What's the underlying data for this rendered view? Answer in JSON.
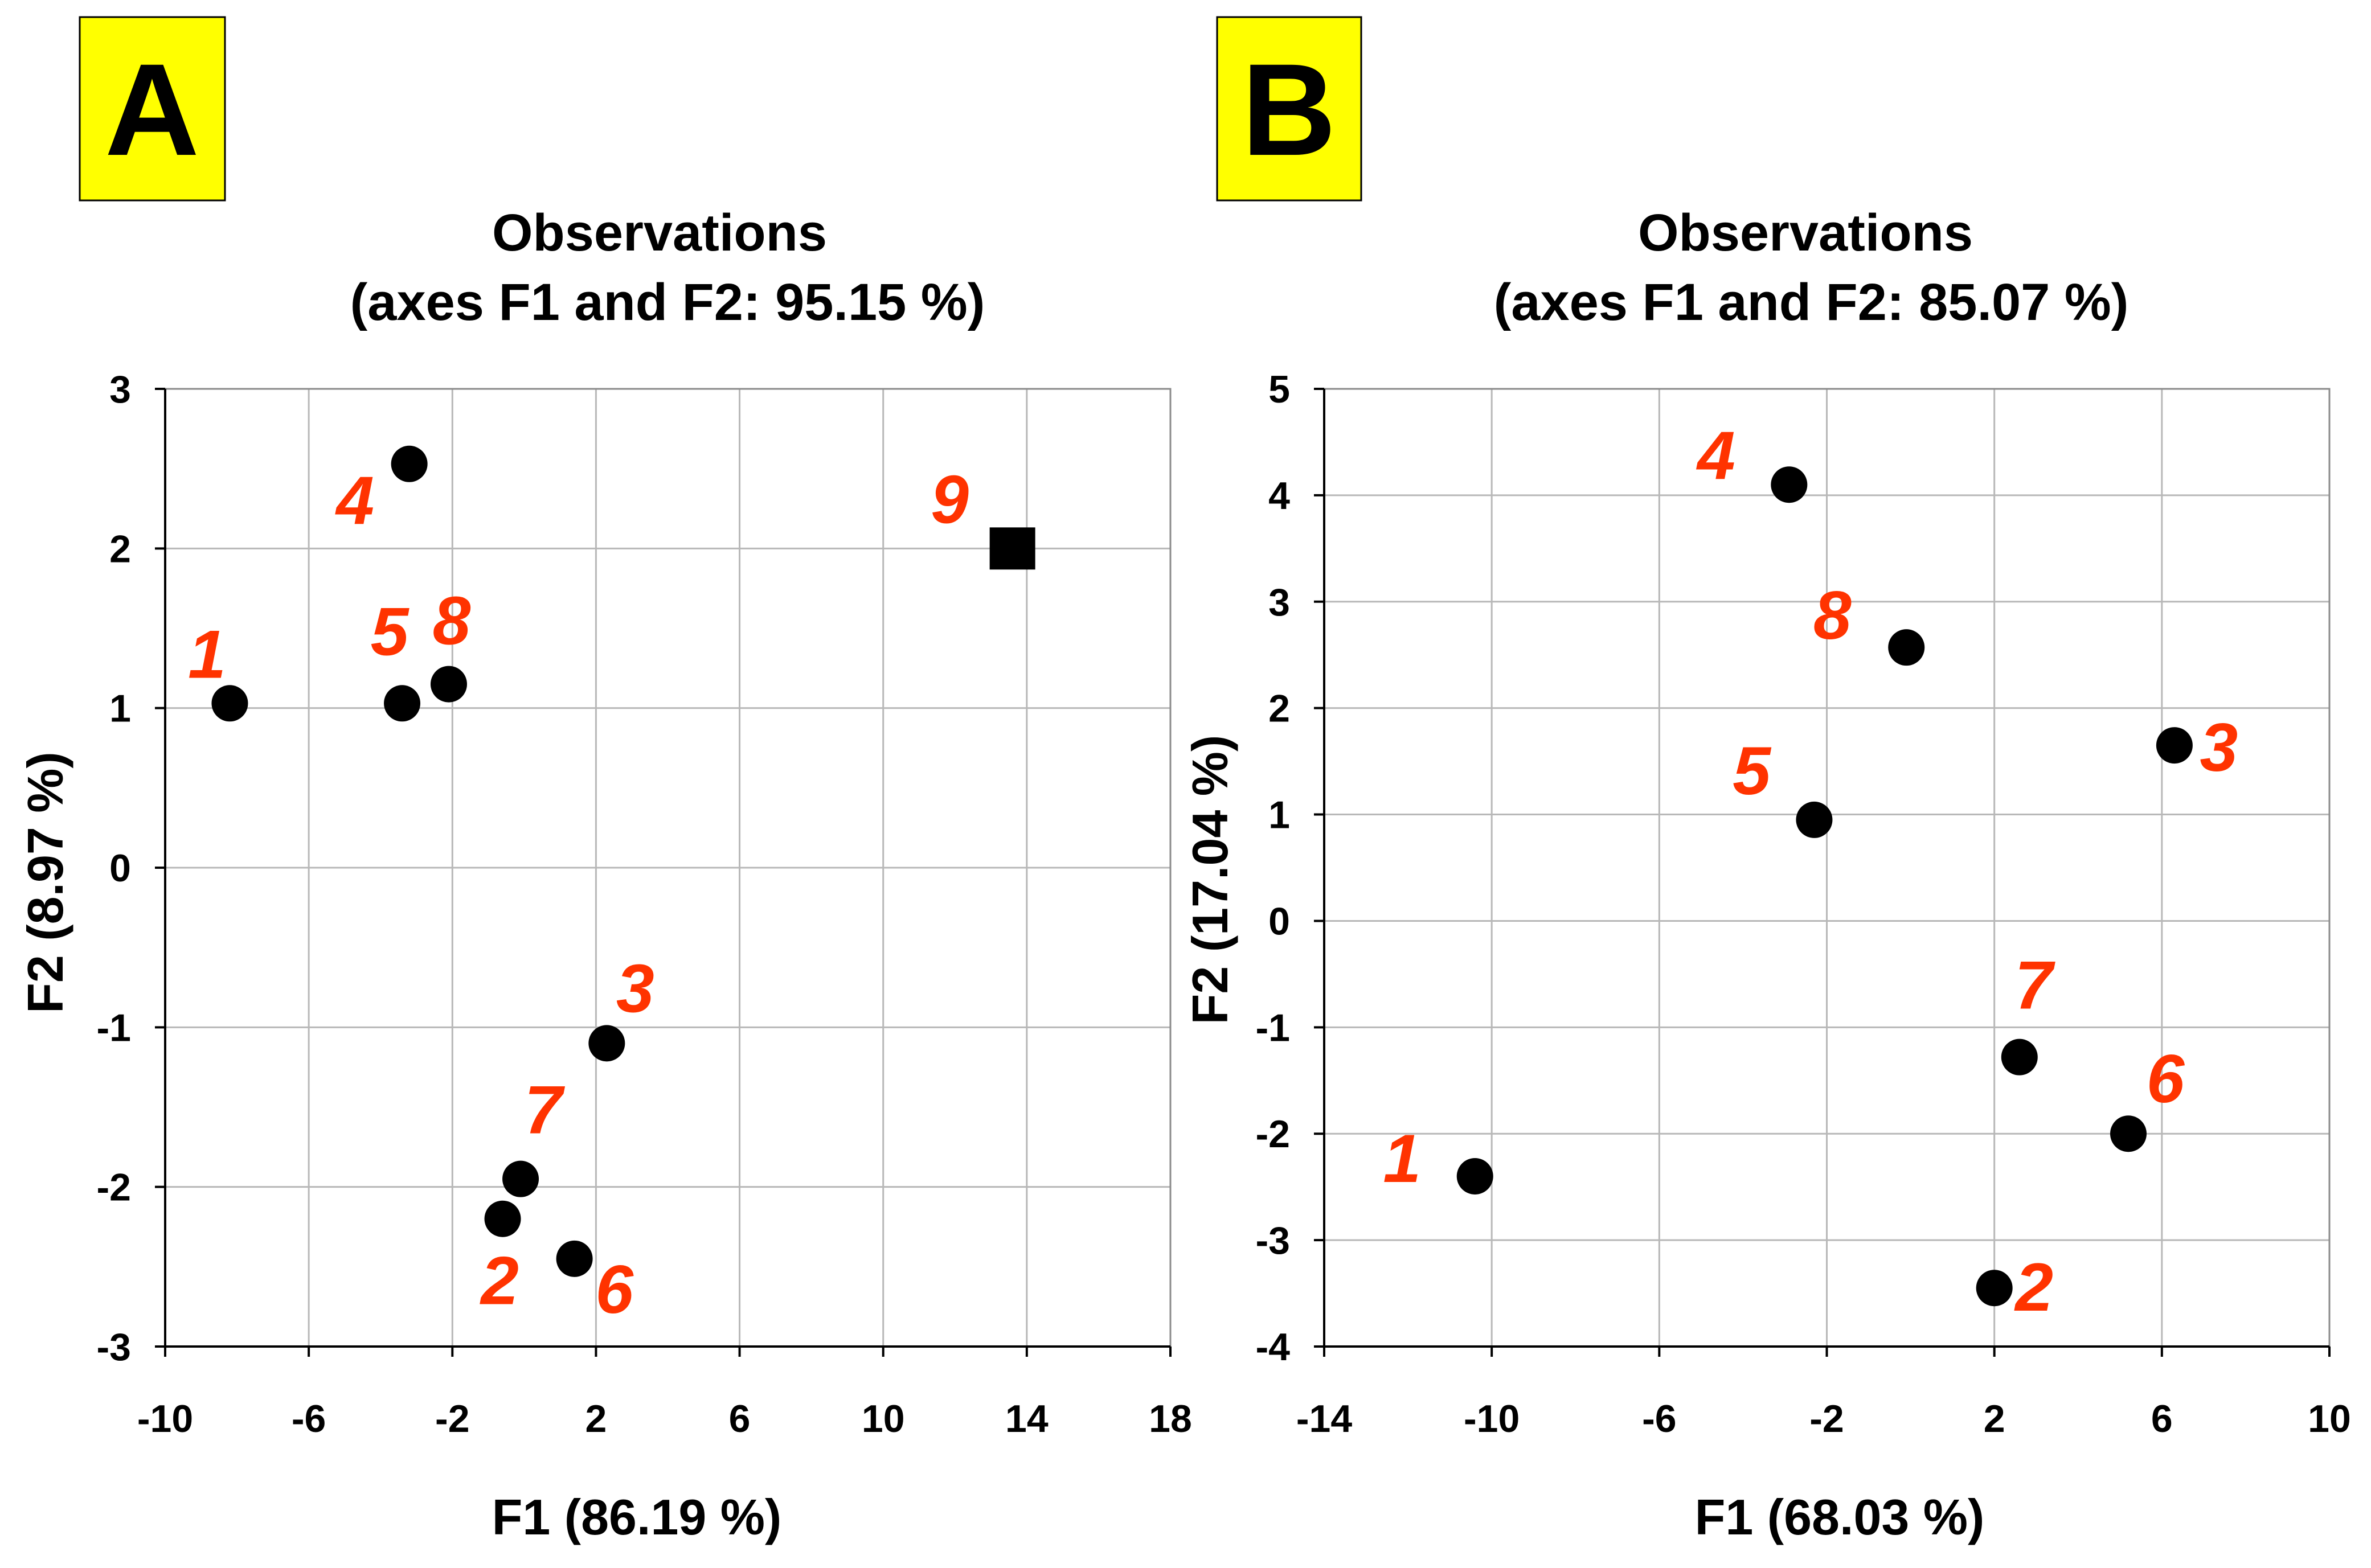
{
  "colors": {
    "label_box": "#ffff00",
    "point": "#000000",
    "point_label": "#ff3300"
  },
  "chart_data": [
    {
      "panel_label": "A",
      "type": "scatter",
      "title_line1": "Observations",
      "title_line2": "(axes F1 and F2: 95.15 %)",
      "xlabel": "F1 (86.19 %)",
      "ylabel": "F2 (8.97 %)",
      "xlim": [
        -10,
        18
      ],
      "ylim": [
        -3,
        3
      ],
      "xticks": [
        -10,
        -6,
        -2,
        2,
        6,
        10,
        14,
        18
      ],
      "yticks": [
        -3,
        -2,
        -1,
        0,
        1,
        2,
        3
      ],
      "grid": true,
      "points": [
        {
          "label": "1",
          "x": -8.2,
          "y": 1.03,
          "marker": "circle"
        },
        {
          "label": "2",
          "x": -0.6,
          "y": -2.2,
          "marker": "circle"
        },
        {
          "label": "3",
          "x": 2.3,
          "y": -1.1,
          "marker": "circle"
        },
        {
          "label": "4",
          "x": -3.2,
          "y": 2.53,
          "marker": "circle"
        },
        {
          "label": "5",
          "x": -3.4,
          "y": 1.03,
          "marker": "circle"
        },
        {
          "label": "6",
          "x": 1.4,
          "y": -2.45,
          "marker": "circle"
        },
        {
          "label": "7",
          "x": -0.1,
          "y": -1.95,
          "marker": "circle"
        },
        {
          "label": "8",
          "x": -2.1,
          "y": 1.15,
          "marker": "circle"
        },
        {
          "label": "9",
          "x": 13.6,
          "y": 2.0,
          "marker": "square"
        }
      ]
    },
    {
      "panel_label": "B",
      "type": "scatter",
      "title_line1": "Observations",
      "title_line2": "(axes F1 and F2: 85.07 %)",
      "xlabel": "F1 (68.03 %)",
      "ylabel": "F2 (17.04 %)",
      "xlim": [
        -14,
        10
      ],
      "ylim": [
        -4,
        5
      ],
      "xticks": [
        -14,
        -10,
        -6,
        -2,
        2,
        6,
        10
      ],
      "yticks": [
        -4,
        -3,
        -2,
        -1,
        0,
        1,
        2,
        3,
        4,
        5
      ],
      "grid": true,
      "points": [
        {
          "label": "1",
          "x": -10.4,
          "y": -2.4,
          "marker": "circle"
        },
        {
          "label": "2",
          "x": 2.0,
          "y": -3.45,
          "marker": "circle"
        },
        {
          "label": "3",
          "x": 6.3,
          "y": 1.65,
          "marker": "circle"
        },
        {
          "label": "4",
          "x": -2.9,
          "y": 4.1,
          "marker": "circle"
        },
        {
          "label": "5",
          "x": -2.3,
          "y": 0.95,
          "marker": "circle"
        },
        {
          "label": "6",
          "x": 5.2,
          "y": -2.0,
          "marker": "circle"
        },
        {
          "label": "7",
          "x": 2.6,
          "y": -1.28,
          "marker": "circle"
        },
        {
          "label": "8",
          "x": -0.1,
          "y": 2.57,
          "marker": "circle"
        }
      ]
    }
  ]
}
